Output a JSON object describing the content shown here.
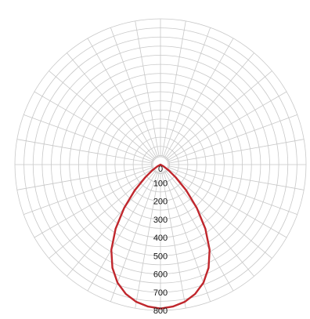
{
  "chart_data": {
    "type": "polar-line",
    "radial_axis": {
      "range": [
        0,
        800
      ],
      "ticks": [
        "0",
        "100",
        "200",
        "300",
        "400",
        "500",
        "600",
        "700",
        "800"
      ],
      "ring_step": 50,
      "angular_step_deg": 10
    },
    "grid": true,
    "series": [
      {
        "color": "#c0272d",
        "points": [
          {
            "angle": 0,
            "r": 790
          },
          {
            "angle": 5,
            "r": 782
          },
          {
            "angle": 10,
            "r": 765
          },
          {
            "angle": 15,
            "r": 735
          },
          {
            "angle": 20,
            "r": 690
          },
          {
            "angle": 25,
            "r": 625
          },
          {
            "angle": 30,
            "r": 540
          },
          {
            "angle": 35,
            "r": 430
          },
          {
            "angle": 40,
            "r": 310
          },
          {
            "angle": 45,
            "r": 200
          },
          {
            "angle": 50,
            "r": 110
          },
          {
            "angle": 55,
            "r": 55
          },
          {
            "angle": 60,
            "r": 20
          },
          {
            "angle": 65,
            "r": 0
          }
        ]
      }
    ]
  }
}
